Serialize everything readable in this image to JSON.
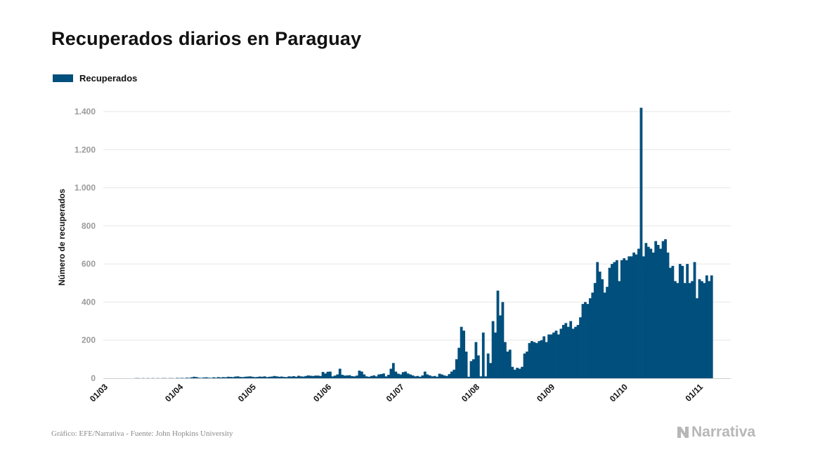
{
  "title": "Recuperados diarios en Paraguay",
  "legend": {
    "label": "Recuperados",
    "color": "#004f7c"
  },
  "source": "Gráfico: EFE/Narrativa - Fuente: John Hopkins University",
  "brand": "Narrativa",
  "chart_data": {
    "type": "bar",
    "title": "Recuperados diarios en Paraguay",
    "xlabel": "",
    "ylabel": "Número de recuperados",
    "ylim": [
      0,
      1400
    ],
    "yticks": [
      0,
      200,
      400,
      600,
      800,
      1000,
      1200,
      1400
    ],
    "ytick_labels": [
      "0",
      "200",
      "400",
      "600",
      "800",
      "1.000",
      "1.200",
      "1.400"
    ],
    "xtick_labels": [
      "01/03",
      "01/04",
      "01/05",
      "01/06",
      "01/07",
      "01/08",
      "01/09",
      "01/10",
      "01/11"
    ],
    "xtick_dates": [
      "2020-03-01",
      "2020-04-01",
      "2020-05-01",
      "2020-06-01",
      "2020-07-01",
      "2020-08-01",
      "2020-09-01",
      "2020-10-01",
      "2020-11-01"
    ],
    "start_date": "2020-03-10",
    "grid": true,
    "legend_position": "top-left",
    "series": [
      {
        "name": "Recuperados",
        "color": "#004f7c",
        "values": [
          0,
          0,
          0,
          1,
          1,
          0,
          1,
          0,
          1,
          0,
          1,
          0,
          1,
          0,
          1,
          1,
          0,
          1,
          1,
          0,
          2,
          1,
          2,
          1,
          3,
          2,
          5,
          8,
          6,
          3,
          2,
          4,
          5,
          3,
          2,
          5,
          3,
          6,
          4,
          6,
          5,
          8,
          7,
          6,
          9,
          10,
          7,
          6,
          8,
          9,
          10,
          8,
          6,
          7,
          9,
          8,
          10,
          6,
          8,
          9,
          12,
          10,
          8,
          9,
          7,
          6,
          10,
          9,
          11,
          8,
          13,
          10,
          9,
          12,
          15,
          13,
          12,
          14,
          14,
          12,
          33,
          25,
          34,
          35,
          10,
          14,
          20,
          50,
          18,
          14,
          15,
          16,
          11,
          10,
          14,
          40,
          35,
          20,
          10,
          8,
          12,
          15,
          10,
          20,
          22,
          25,
          10,
          18,
          50,
          80,
          35,
          24,
          20,
          32,
          35,
          25,
          20,
          15,
          10,
          12,
          8,
          15,
          35,
          20,
          15,
          10,
          12,
          8,
          24,
          20,
          15,
          12,
          22,
          35,
          45,
          100,
          160,
          270,
          250,
          140,
          8,
          90,
          100,
          190,
          120,
          10,
          240,
          10,
          130,
          80,
          300,
          240,
          460,
          330,
          400,
          190,
          140,
          150,
          60,
          45,
          55,
          50,
          60,
          130,
          140,
          185,
          195,
          190,
          185,
          195,
          200,
          220,
          190,
          230,
          230,
          240,
          250,
          230,
          260,
          280,
          290,
          270,
          300,
          260,
          270,
          280,
          320,
          390,
          400,
          390,
          420,
          450,
          500,
          610,
          560,
          520,
          450,
          480,
          580,
          600,
          610,
          620,
          510,
          620,
          630,
          620,
          640,
          640,
          660,
          650,
          680,
          1420,
          640,
          710,
          690,
          680,
          660,
          720,
          700,
          680,
          720,
          730,
          660,
          580,
          590,
          510,
          500,
          600,
          590,
          500,
          600,
          500,
          510,
          610,
          420,
          520,
          510,
          500,
          540,
          510,
          540
        ]
      }
    ]
  }
}
